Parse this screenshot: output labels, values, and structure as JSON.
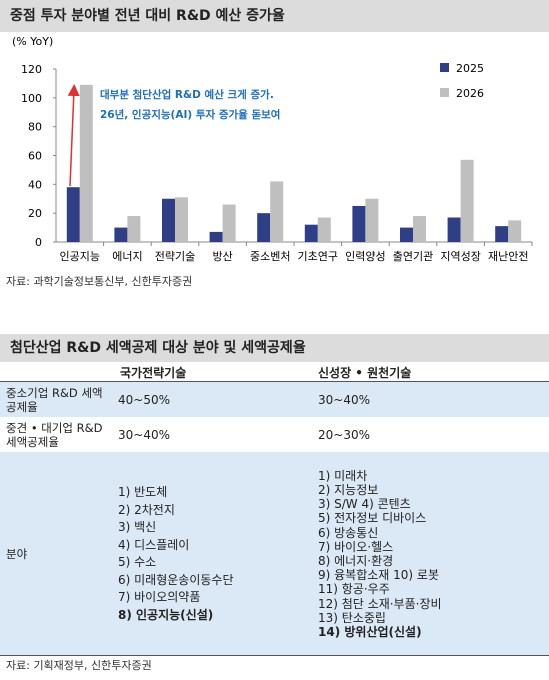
{
  "chart_data": {
    "type": "bar",
    "title": "중점 투자 분야별 전년 대비 R&D 예산 증가율",
    "y_label": "(% YoY)",
    "categories": [
      "인공지능",
      "에너지",
      "전략기술",
      "방산",
      "중소벤처",
      "기초연구",
      "인력양성",
      "출연기관",
      "지역성장",
      "재난안전"
    ],
    "series": [
      {
        "name": "2025",
        "color": "#2f3f86",
        "values": [
          38,
          10,
          30,
          7,
          20,
          12,
          25,
          10,
          17,
          11
        ]
      },
      {
        "name": "2026",
        "color": "#bfbfbf",
        "values": [
          109,
          18,
          31,
          26,
          42,
          17,
          30,
          18,
          57,
          15
        ]
      }
    ],
    "ylim": [
      0,
      120
    ],
    "yticks": [
      0,
      20,
      40,
      60,
      80,
      100,
      120
    ],
    "annotations": [
      "대부분 첨단산업 R&D 예산 크게 증가.",
      "26년, 인공지능(AI) 투자 증가율 돋보여"
    ],
    "annotation_color": "#1f6fb8",
    "source": "자료: 과학기술정보통신부, 신한투자증권"
  },
  "table": {
    "title": "첨단산업 R&D 세액공제 대상 분야 및 세액공제율",
    "columns": [
      "국가전략기술",
      "신성장 • 원천기술"
    ],
    "rows": [
      [
        "중소기업 R&D 세액공제율",
        "40~50%",
        "30~40%"
      ],
      [
        "중견 • 대기업 R&D 세액공제율",
        "30~40%",
        "20~30%"
      ],
      [
        "분야",
        [
          "1) 반도체",
          "2) 2차전지",
          "3) 백신",
          "4) 디스플레이",
          "5) 수소",
          "6) 미래형운송이동수단",
          "7) 바이오의약품",
          "8) 인공지능(신설)"
        ],
        [
          "1) 미래차",
          "2) 지능정보",
          "3) S/W 4) 콘텐츠",
          "5) 전자정보 디바이스",
          "6) 방송통신",
          "7) 바이오·헬스",
          "8) 에너지·환경",
          "9) 융복합소재 10) 로봇",
          "11) 항공·우주",
          "12) 첨단 소재·부품·장비",
          "13) 탄소중립",
          "14) 방위산업(신설)"
        ]
      ]
    ],
    "source": "자료: 기획재정부, 신한투자증권"
  }
}
